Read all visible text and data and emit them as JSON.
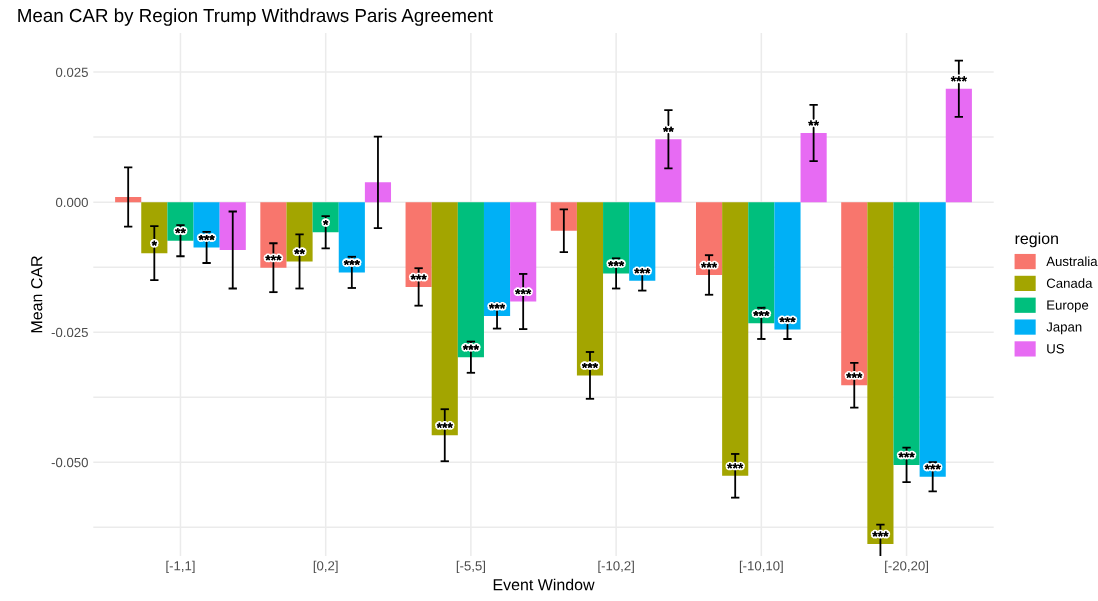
{
  "chart_data": {
    "type": "bar",
    "title": "Mean CAR by Region Trump Withdraws Paris Agreement",
    "xlabel": "Event Window",
    "ylabel": "Mean CAR",
    "legend_title": "region",
    "legend": "right",
    "categories": [
      "[-1,1]",
      "[0,2]",
      "[-5,5]",
      "[-10,2]",
      "[-10,10]",
      "[-20,20]"
    ],
    "series": [
      {
        "name": "Australia",
        "color": "#f8766d",
        "values": [
          0.001,
          -0.0126,
          -0.0163,
          -0.0055,
          -0.014,
          -0.0352
        ],
        "errors": [
          0.0057,
          0.0047,
          0.0036,
          0.0041,
          0.0038,
          0.0043
        ],
        "value_labels": [
          null,
          "***",
          "***",
          null,
          "***",
          "***"
        ]
      },
      {
        "name": "Canada",
        "color": "#a3a500",
        "values": [
          -0.0098,
          -0.0114,
          -0.0448,
          -0.0333,
          -0.0526,
          -0.0657
        ],
        "errors": [
          0.0052,
          0.0052,
          0.005,
          0.0045,
          0.0042,
          0.0037
        ],
        "value_labels": [
          "*",
          "**",
          "***",
          "***",
          "***",
          "***"
        ]
      },
      {
        "name": "Europe",
        "color": "#00bf7d",
        "values": [
          -0.0074,
          -0.0058,
          -0.0298,
          -0.0137,
          -0.0233,
          -0.0505
        ],
        "errors": [
          0.003,
          0.0031,
          0.003,
          0.0029,
          0.003,
          0.0033
        ],
        "value_labels": [
          "**",
          "*",
          "***",
          "***",
          "***",
          "***"
        ]
      },
      {
        "name": "Japan",
        "color": "#00b0f6",
        "values": [
          -0.0087,
          -0.0135,
          -0.0219,
          -0.0151,
          -0.0245,
          -0.0528
        ],
        "errors": [
          0.003,
          0.003,
          0.0024,
          0.0019,
          0.0018,
          0.0028
        ],
        "value_labels": [
          "***",
          "***",
          "***",
          "***",
          "***",
          "***"
        ]
      },
      {
        "name": "US",
        "color": "#e76bf3",
        "values": [
          -0.0092,
          0.0038,
          -0.0191,
          0.0121,
          0.0133,
          0.0218
        ],
        "errors": [
          0.0074,
          0.0088,
          0.0053,
          0.0056,
          0.0054,
          0.0054
        ],
        "value_labels": [
          null,
          null,
          "***",
          "**",
          "**",
          "***"
        ]
      }
    ],
    "ylim": [
      -0.068,
      0.0325
    ],
    "yticks": [
      {
        "value": -0.0625,
        "label": null
      },
      {
        "value": -0.05,
        "label": "-0.050"
      },
      {
        "value": -0.0375,
        "label": null
      },
      {
        "value": -0.025,
        "label": "-0.025"
      },
      {
        "value": -0.0125,
        "label": null
      },
      {
        "value": 0,
        "label": "0.000"
      },
      {
        "value": 0.0125,
        "label": null
      },
      {
        "value": 0.025,
        "label": "0.025"
      }
    ],
    "grid": true
  }
}
